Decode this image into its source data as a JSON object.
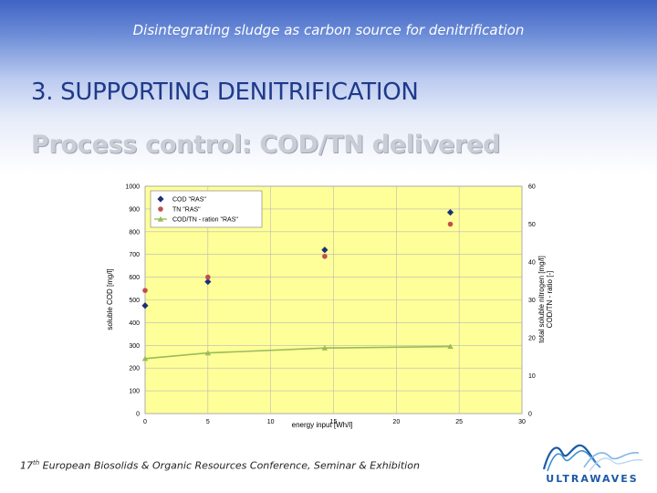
{
  "slide": {
    "header_title": "Disintegrating sludge as carbon source for denitrification",
    "section_heading": "3. SUPPORTING DENITRIFICATION",
    "subtitle": "Process control: COD/TN delivered",
    "footer_sup": "th",
    "footer_prefix": "17",
    "footer_rest": " European Biosolids & Organic Resources Conference, Seminar & Exhibition",
    "logo_text": "ULTRAWAVES"
  },
  "colors": {
    "plot_bg": "#ffff99",
    "cod_series": "#1f2f7a",
    "tn_series": "#c0504d",
    "ratio_series": "#9bbb59",
    "logo": "#1a5aa6"
  },
  "chart_data": {
    "type": "scatter",
    "xlabel": "energy input [Wh/l]",
    "ylabel_left": "soluble COD [mg/l]",
    "ylabel_right_1": "total soluble nitrogen [mg/l]",
    "ylabel_right_2": "COD/TN - ratio [-]",
    "xlim": [
      0,
      30
    ],
    "ylim_left": [
      0,
      1000
    ],
    "ylim_right": [
      0,
      60
    ],
    "x_ticks": [
      "0",
      "5",
      "10",
      "15",
      "20",
      "25",
      "30"
    ],
    "y_left_ticks": [
      "0",
      "100",
      "200",
      "300",
      "400",
      "500",
      "600",
      "700",
      "800",
      "900",
      "1000"
    ],
    "y_right_ticks": [
      "0",
      "10",
      "20",
      "30",
      "40",
      "50",
      "60"
    ],
    "grid": true,
    "legend_position": "top-left",
    "series": [
      {
        "name": "COD \"RAS\"",
        "axis": "left",
        "marker": "diamond",
        "x": [
          0,
          5,
          14.3,
          24.3
        ],
        "y": [
          475,
          580,
          720,
          885
        ]
      },
      {
        "name": "TN \"RAS\"",
        "axis": "right",
        "marker": "circle",
        "x": [
          0,
          5,
          14.3,
          24.3
        ],
        "y": [
          32.5,
          36,
          41.5,
          50
        ]
      },
      {
        "name": "COD/TN - ration \"RAS\"",
        "axis": "right",
        "marker": "triangle",
        "line": true,
        "x": [
          0,
          5,
          14.3,
          24.3
        ],
        "y": [
          14.5,
          16,
          17.3,
          17.7
        ]
      }
    ]
  }
}
